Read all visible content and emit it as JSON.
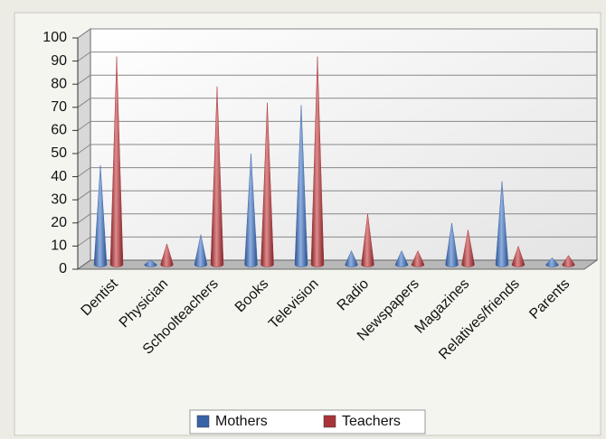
{
  "chart_data": {
    "type": "bar",
    "categories": [
      "Dentist",
      "Physician",
      "Schoolteachers",
      "Books",
      "Television",
      "Radio",
      "Newspapers",
      "Magazines",
      "Relatives/friends",
      "Parents"
    ],
    "series": [
      {
        "name": "Mothers",
        "color": "#3a64a8",
        "values": [
          43,
          2,
          13,
          48,
          69,
          6,
          6,
          18,
          36,
          3
        ]
      },
      {
        "name": "Teachers",
        "color": "#a83438",
        "values": [
          90,
          9,
          77,
          70,
          90,
          22,
          6,
          15,
          8,
          4
        ]
      }
    ],
    "ylim": [
      0,
      100
    ],
    "yticks": [
      0,
      10,
      20,
      30,
      40,
      50,
      60,
      70,
      80,
      90,
      100
    ],
    "grid": true
  }
}
